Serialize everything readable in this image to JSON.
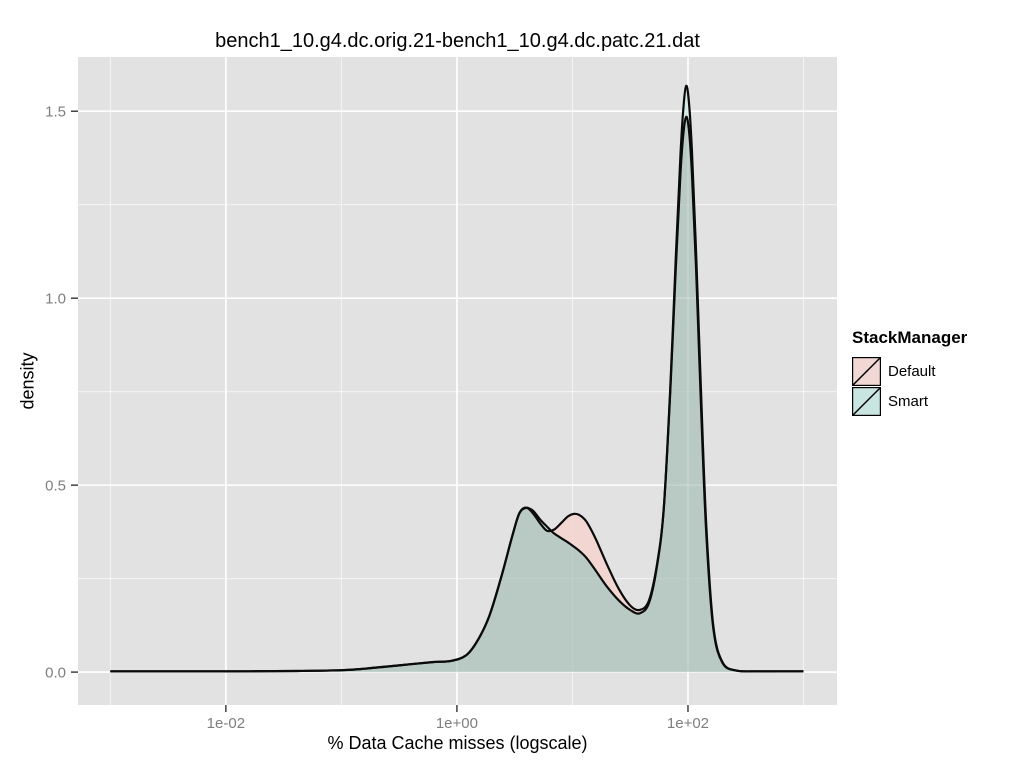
{
  "title": "bench1_10.g4.dc.orig.21-bench1_10.g4.dc.patc.21.dat",
  "legend": {
    "title": "StackManager",
    "items": [
      {
        "label": "Default",
        "fill": "#F2D8D5"
      },
      {
        "label": "Smart",
        "fill": "#C9E5E1"
      }
    ]
  },
  "colors": {
    "panel_bg": "#E2E2E2",
    "grid": "#FFFFFF",
    "tick_mark": "#333333",
    "tick_label": "#7E7E7E",
    "line": "#0B0B0B",
    "default_fill": "#F2D6D2",
    "smart_fill": "#D2E9E5",
    "overlap_fill": "#B9CAC4"
  },
  "chart_data": {
    "type": "area",
    "subtype": "kernel-density",
    "title": "bench1_10.g4.dc.orig.21-bench1_10.g4.dc.patc.21.dat",
    "xlabel": "% Data Cache misses (logscale)",
    "ylabel": "density",
    "x_scale": "log10",
    "x_range_log10": [
      -3.28,
      3.29
    ],
    "y_range": [
      -0.088,
      1.645
    ],
    "grid": true,
    "legend_position": "right",
    "x_ticks": [
      {
        "log10": -2,
        "label": "1e-02"
      },
      {
        "log10": 0,
        "label": "1e+00"
      },
      {
        "log10": 2,
        "label": "1e+02"
      }
    ],
    "x_minor_log10": [
      -3,
      -1,
      1,
      3
    ],
    "y_ticks": [
      {
        "value": 0.0,
        "label": "0.0"
      },
      {
        "value": 0.5,
        "label": "0.5"
      },
      {
        "value": 1.0,
        "label": "1.0"
      },
      {
        "value": 1.5,
        "label": "1.5"
      }
    ],
    "y_minor": [
      0.25,
      0.75,
      1.25
    ],
    "series": [
      {
        "name": "Default",
        "fill": "#F2D6D2",
        "line": "#0B0B0B",
        "points_log10x_density": [
          [
            -3.0,
            0.002
          ],
          [
            -2.6,
            0.002
          ],
          [
            -2.2,
            0.002
          ],
          [
            -1.8,
            0.002
          ],
          [
            -1.4,
            0.003
          ],
          [
            -1.0,
            0.005
          ],
          [
            -0.8,
            0.009
          ],
          [
            -0.6,
            0.015
          ],
          [
            -0.4,
            0.021
          ],
          [
            -0.2,
            0.027
          ],
          [
            -0.05,
            0.03
          ],
          [
            0.08,
            0.045
          ],
          [
            0.18,
            0.085
          ],
          [
            0.28,
            0.15
          ],
          [
            0.38,
            0.25
          ],
          [
            0.48,
            0.365
          ],
          [
            0.54,
            0.425
          ],
          [
            0.6,
            0.44
          ],
          [
            0.66,
            0.424
          ],
          [
            0.72,
            0.398
          ],
          [
            0.78,
            0.378
          ],
          [
            0.84,
            0.381
          ],
          [
            0.9,
            0.398
          ],
          [
            0.96,
            0.416
          ],
          [
            1.01,
            0.423
          ],
          [
            1.06,
            0.42
          ],
          [
            1.12,
            0.403
          ],
          [
            1.2,
            0.357
          ],
          [
            1.3,
            0.287
          ],
          [
            1.4,
            0.223
          ],
          [
            1.5,
            0.178
          ],
          [
            1.58,
            0.166
          ],
          [
            1.66,
            0.19
          ],
          [
            1.73,
            0.285
          ],
          [
            1.79,
            0.435
          ],
          [
            1.845,
            0.74
          ],
          [
            1.895,
            1.08
          ],
          [
            1.935,
            1.335
          ],
          [
            1.962,
            1.445
          ],
          [
            1.985,
            1.485
          ],
          [
            2.008,
            1.45
          ],
          [
            2.035,
            1.33
          ],
          [
            2.075,
            1.04
          ],
          [
            2.115,
            0.69
          ],
          [
            2.16,
            0.36
          ],
          [
            2.22,
            0.115
          ],
          [
            2.3,
            0.024
          ],
          [
            2.42,
            0.004
          ],
          [
            2.6,
            0.002
          ],
          [
            2.8,
            0.002
          ],
          [
            3.0,
            0.002
          ]
        ]
      },
      {
        "name": "Smart",
        "fill": "#D2E9E5",
        "line": "#0B0B0B",
        "points_log10x_density": [
          [
            -3.0,
            0.002
          ],
          [
            -2.6,
            0.002
          ],
          [
            -2.2,
            0.002
          ],
          [
            -1.8,
            0.002
          ],
          [
            -1.4,
            0.003
          ],
          [
            -1.0,
            0.005
          ],
          [
            -0.8,
            0.009
          ],
          [
            -0.6,
            0.015
          ],
          [
            -0.4,
            0.021
          ],
          [
            -0.2,
            0.027
          ],
          [
            -0.05,
            0.03
          ],
          [
            0.08,
            0.045
          ],
          [
            0.18,
            0.085
          ],
          [
            0.28,
            0.15
          ],
          [
            0.38,
            0.25
          ],
          [
            0.48,
            0.365
          ],
          [
            0.54,
            0.424
          ],
          [
            0.6,
            0.439
          ],
          [
            0.66,
            0.431
          ],
          [
            0.72,
            0.408
          ],
          [
            0.78,
            0.389
          ],
          [
            0.84,
            0.371
          ],
          [
            0.9,
            0.359
          ],
          [
            0.96,
            0.347
          ],
          [
            1.01,
            0.336
          ],
          [
            1.06,
            0.324
          ],
          [
            1.12,
            0.306
          ],
          [
            1.2,
            0.272
          ],
          [
            1.3,
            0.228
          ],
          [
            1.4,
            0.192
          ],
          [
            1.5,
            0.166
          ],
          [
            1.58,
            0.157
          ],
          [
            1.66,
            0.183
          ],
          [
            1.73,
            0.28
          ],
          [
            1.79,
            0.435
          ],
          [
            1.845,
            0.75
          ],
          [
            1.895,
            1.11
          ],
          [
            1.935,
            1.385
          ],
          [
            1.962,
            1.515
          ],
          [
            1.985,
            1.568
          ],
          [
            2.008,
            1.525
          ],
          [
            2.035,
            1.39
          ],
          [
            2.075,
            1.085
          ],
          [
            2.115,
            0.73
          ],
          [
            2.16,
            0.382
          ],
          [
            2.22,
            0.122
          ],
          [
            2.3,
            0.026
          ],
          [
            2.42,
            0.004
          ],
          [
            2.6,
            0.002
          ],
          [
            2.8,
            0.002
          ],
          [
            3.0,
            0.002
          ]
        ]
      }
    ]
  }
}
